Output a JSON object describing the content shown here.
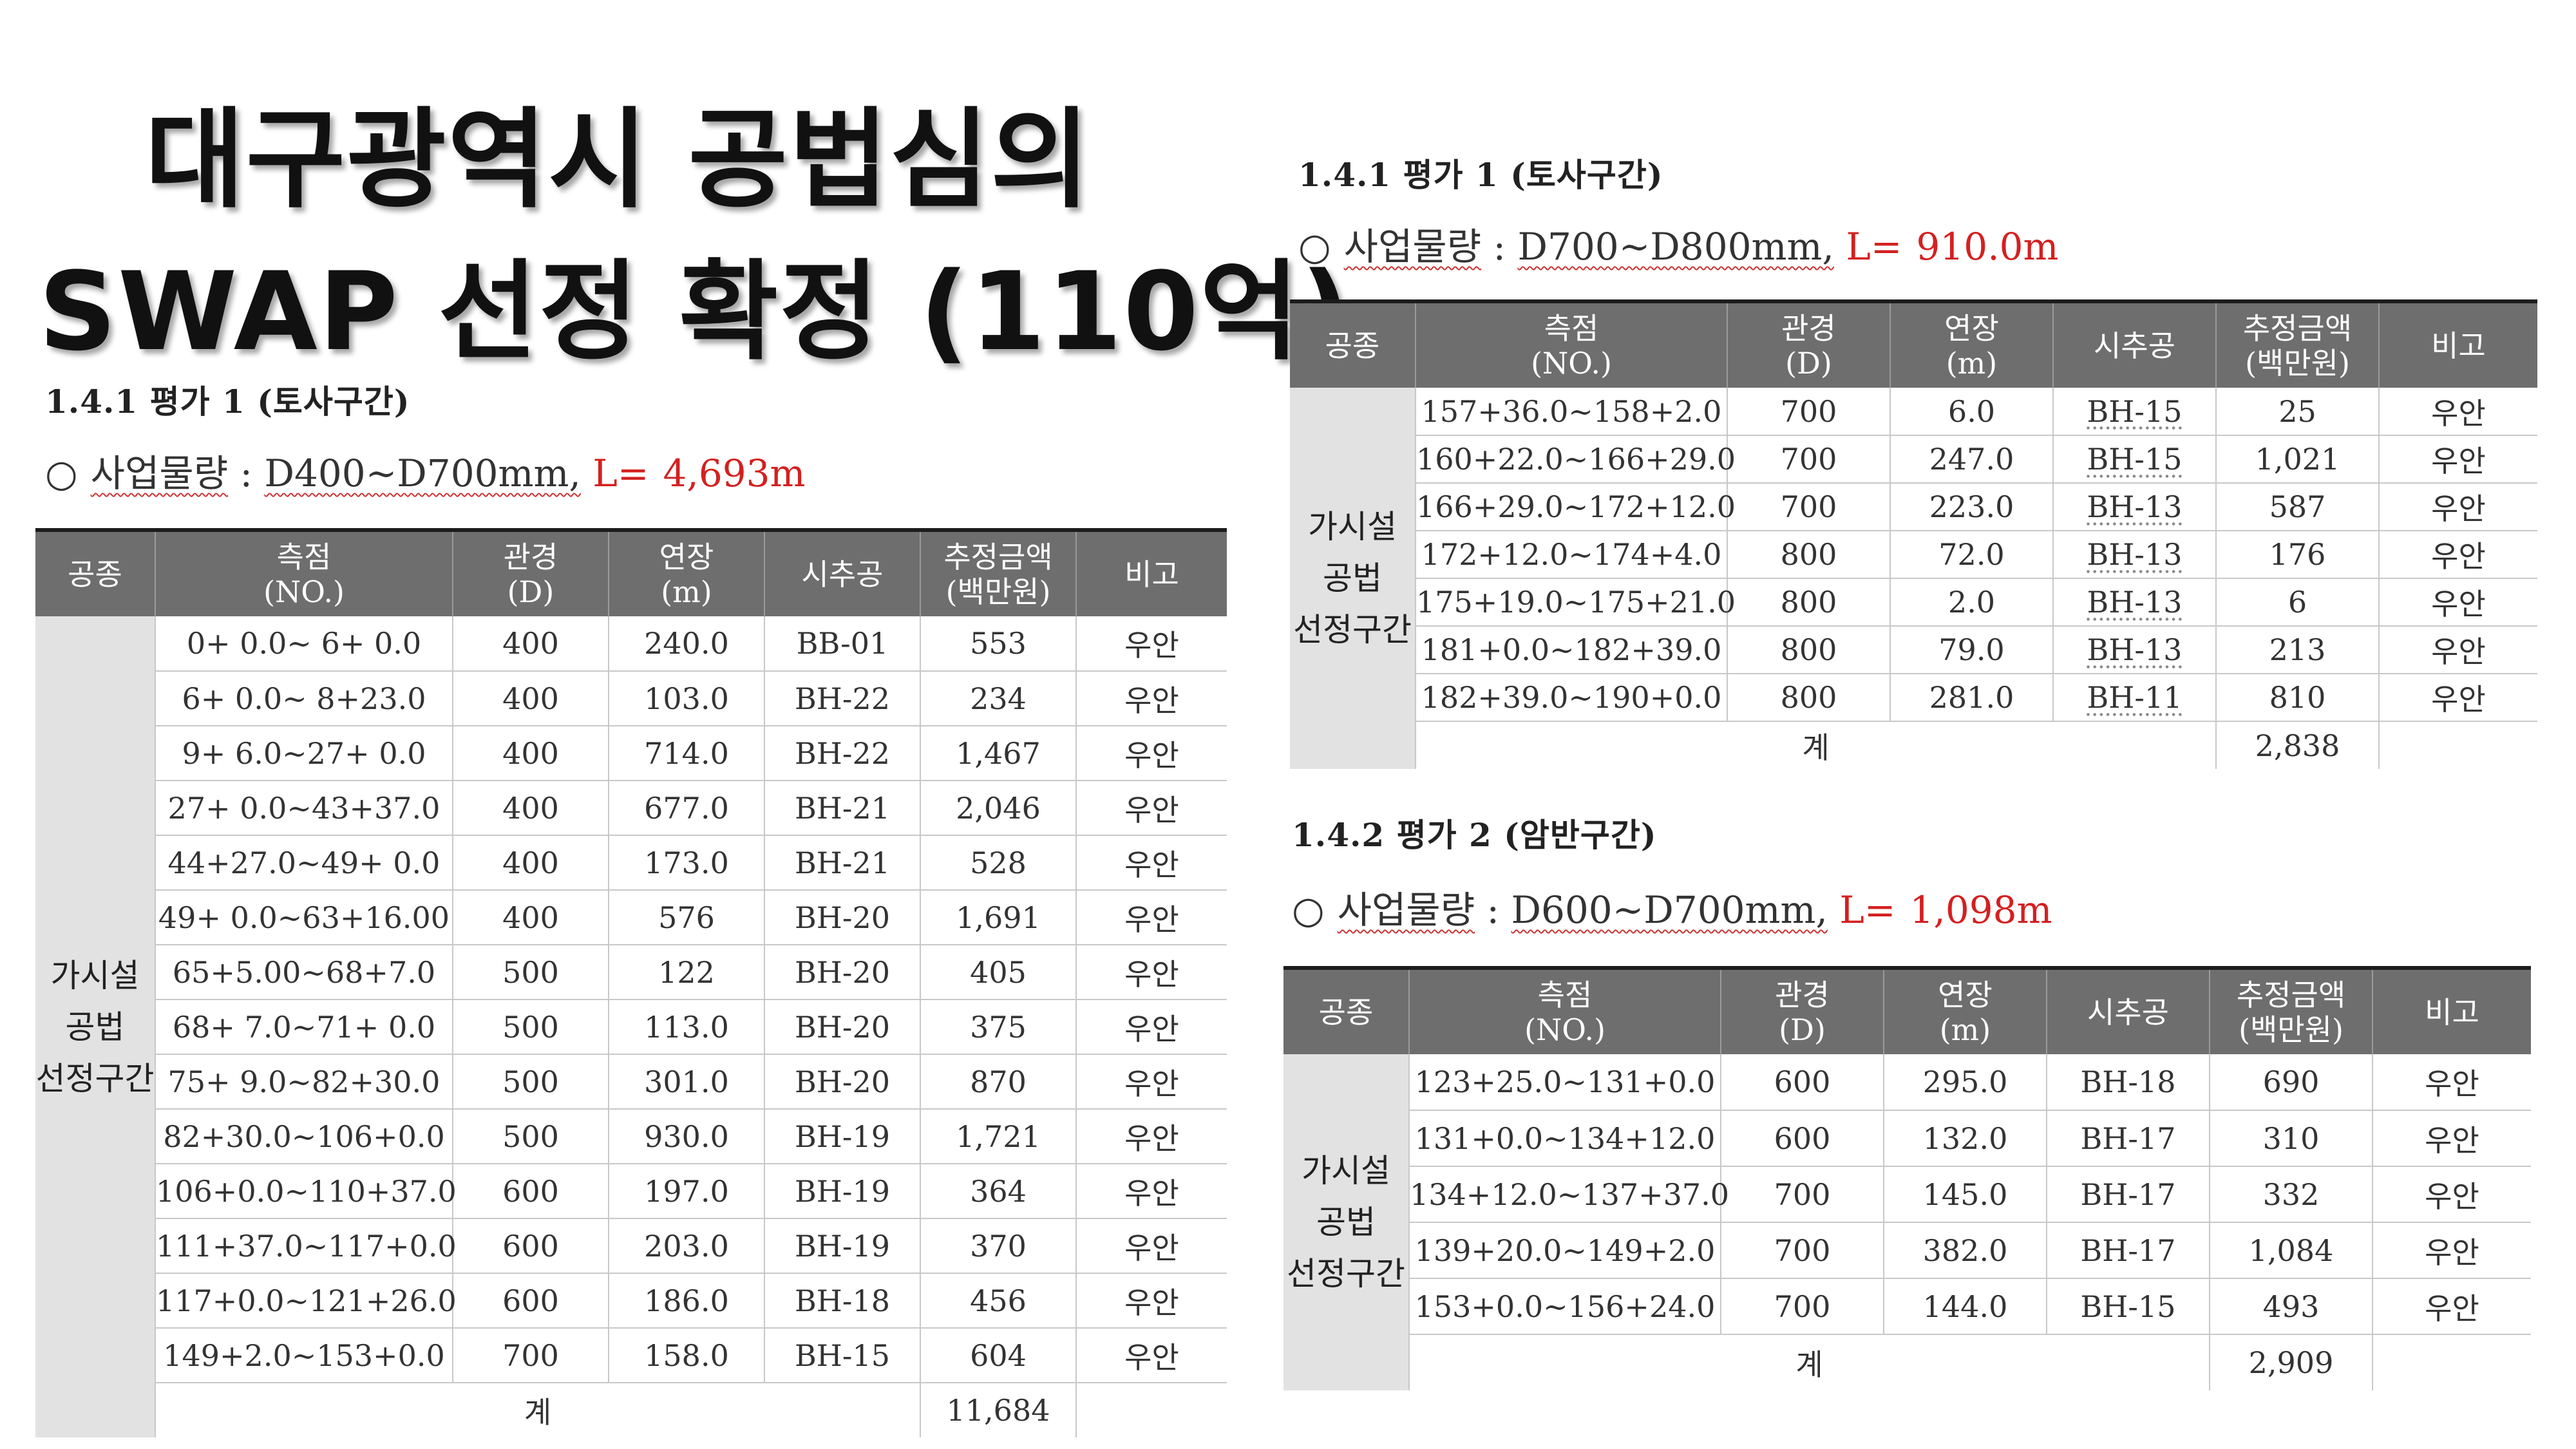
{
  "title": {
    "line1": "대구광역시 공법심의",
    "line2": "SWAP 선정 확정 (110억)"
  },
  "headers": {
    "type": "공종",
    "station": "측점",
    "station_sub": "(NO.)",
    "diameter": "관경",
    "diameter_sub": "(D)",
    "length": "연장",
    "length_sub": "(m)",
    "bore": "시추공",
    "cost": "추정금액",
    "cost_sub": "(백만원)",
    "remark": "비고"
  },
  "category": {
    "line1": "가시설",
    "line2": "공법",
    "line3": "선정구간"
  },
  "total_label": "계",
  "sections": [
    {
      "heading": "1.4.1 평가 1 (토사구간)",
      "circle": "○",
      "qty_label": "사업물량",
      "qty_sep": ":",
      "range": "D400~D700mm,",
      "length_label": "L=",
      "length_value": "4,693m",
      "rows": [
        {
          "station": "0+ 0.0~ 6+ 0.0",
          "diameter": "400",
          "length": "240.0",
          "bore": "BB-01",
          "cost": "553",
          "remark": "우안"
        },
        {
          "station": "6+ 0.0~ 8+23.0",
          "diameter": "400",
          "length": "103.0",
          "bore": "BH-22",
          "cost": "234",
          "remark": "우안"
        },
        {
          "station": "9+ 6.0~27+ 0.0",
          "diameter": "400",
          "length": "714.0",
          "bore": "BH-22",
          "cost": "1,467",
          "remark": "우안"
        },
        {
          "station": "27+ 0.0~43+37.0",
          "diameter": "400",
          "length": "677.0",
          "bore": "BH-21",
          "cost": "2,046",
          "remark": "우안"
        },
        {
          "station": "44+27.0~49+ 0.0",
          "diameter": "400",
          "length": "173.0",
          "bore": "BH-21",
          "cost": "528",
          "remark": "우안"
        },
        {
          "station": "49+ 0.0~63+16.00",
          "diameter": "400",
          "length": "576",
          "bore": "BH-20",
          "cost": "1,691",
          "remark": "우안"
        },
        {
          "station": "65+5.00~68+7.0",
          "diameter": "500",
          "length": "122",
          "bore": "BH-20",
          "cost": "405",
          "remark": "우안"
        },
        {
          "station": "68+ 7.0~71+ 0.0",
          "diameter": "500",
          "length": "113.0",
          "bore": "BH-20",
          "cost": "375",
          "remark": "우안"
        },
        {
          "station": "75+ 9.0~82+30.0",
          "diameter": "500",
          "length": "301.0",
          "bore": "BH-20",
          "cost": "870",
          "remark": "우안"
        },
        {
          "station": "82+30.0~106+0.0",
          "diameter": "500",
          "length": "930.0",
          "bore": "BH-19",
          "cost": "1,721",
          "remark": "우안"
        },
        {
          "station": "106+0.0~110+37.0",
          "diameter": "600",
          "length": "197.0",
          "bore": "BH-19",
          "cost": "364",
          "remark": "우안"
        },
        {
          "station": "111+37.0~117+0.0",
          "diameter": "600",
          "length": "203.0",
          "bore": "BH-19",
          "cost": "370",
          "remark": "우안"
        },
        {
          "station": "117+0.0~121+26.0",
          "diameter": "600",
          "length": "186.0",
          "bore": "BH-18",
          "cost": "456",
          "remark": "우안"
        },
        {
          "station": "149+2.0~153+0.0",
          "diameter": "700",
          "length": "158.0",
          "bore": "BH-15",
          "cost": "604",
          "remark": "우안"
        }
      ],
      "total_cost": "11,684"
    },
    {
      "heading": "1.4.1 평가 1 (토사구간)",
      "circle": "○",
      "qty_label": "사업물량",
      "qty_sep": ":",
      "range": "D700~D800mm,",
      "length_label": "L=",
      "length_value": "910.0m",
      "rows": [
        {
          "station": "157+36.0~158+2.0",
          "diameter": "700",
          "length": "6.0",
          "bore": "BH-15",
          "cost": "25",
          "remark": "우안"
        },
        {
          "station": "160+22.0~166+29.0",
          "diameter": "700",
          "length": "247.0",
          "bore": "BH-15",
          "cost": "1,021",
          "remark": "우안"
        },
        {
          "station": "166+29.0~172+12.0",
          "diameter": "700",
          "length": "223.0",
          "bore": "BH-13",
          "cost": "587",
          "remark": "우안"
        },
        {
          "station": "172+12.0~174+4.0",
          "diameter": "800",
          "length": "72.0",
          "bore": "BH-13",
          "cost": "176",
          "remark": "우안"
        },
        {
          "station": "175+19.0~175+21.0",
          "diameter": "800",
          "length": "2.0",
          "bore": "BH-13",
          "cost": "6",
          "remark": "우안"
        },
        {
          "station": "181+0.0~182+39.0",
          "diameter": "800",
          "length": "79.0",
          "bore": "BH-13",
          "cost": "213",
          "remark": "우안"
        },
        {
          "station": "182+39.0~190+0.0",
          "diameter": "800",
          "length": "281.0",
          "bore": "BH-11",
          "cost": "810",
          "remark": "우안"
        }
      ],
      "total_cost": "2,838"
    },
    {
      "heading": "1.4.2 평가 2 (암반구간)",
      "circle": "○",
      "qty_label": "사업물량",
      "qty_sep": ":",
      "range": "D600~D700mm,",
      "length_label": "L=",
      "length_value": "1,098m",
      "rows": [
        {
          "station": "123+25.0~131+0.0",
          "diameter": "600",
          "length": "295.0",
          "bore": "BH-18",
          "cost": "690",
          "remark": "우안"
        },
        {
          "station": "131+0.0~134+12.0",
          "diameter": "600",
          "length": "132.0",
          "bore": "BH-17",
          "cost": "310",
          "remark": "우안"
        },
        {
          "station": "134+12.0~137+37.0",
          "diameter": "700",
          "length": "145.0",
          "bore": "BH-17",
          "cost": "332",
          "remark": "우안"
        },
        {
          "station": "139+20.0~149+2.0",
          "diameter": "700",
          "length": "382.0",
          "bore": "BH-17",
          "cost": "1,084",
          "remark": "우안"
        },
        {
          "station": "153+0.0~156+24.0",
          "diameter": "700",
          "length": "144.0",
          "bore": "BH-15",
          "cost": "493",
          "remark": "우안"
        }
      ],
      "total_cost": "2,909"
    }
  ]
}
